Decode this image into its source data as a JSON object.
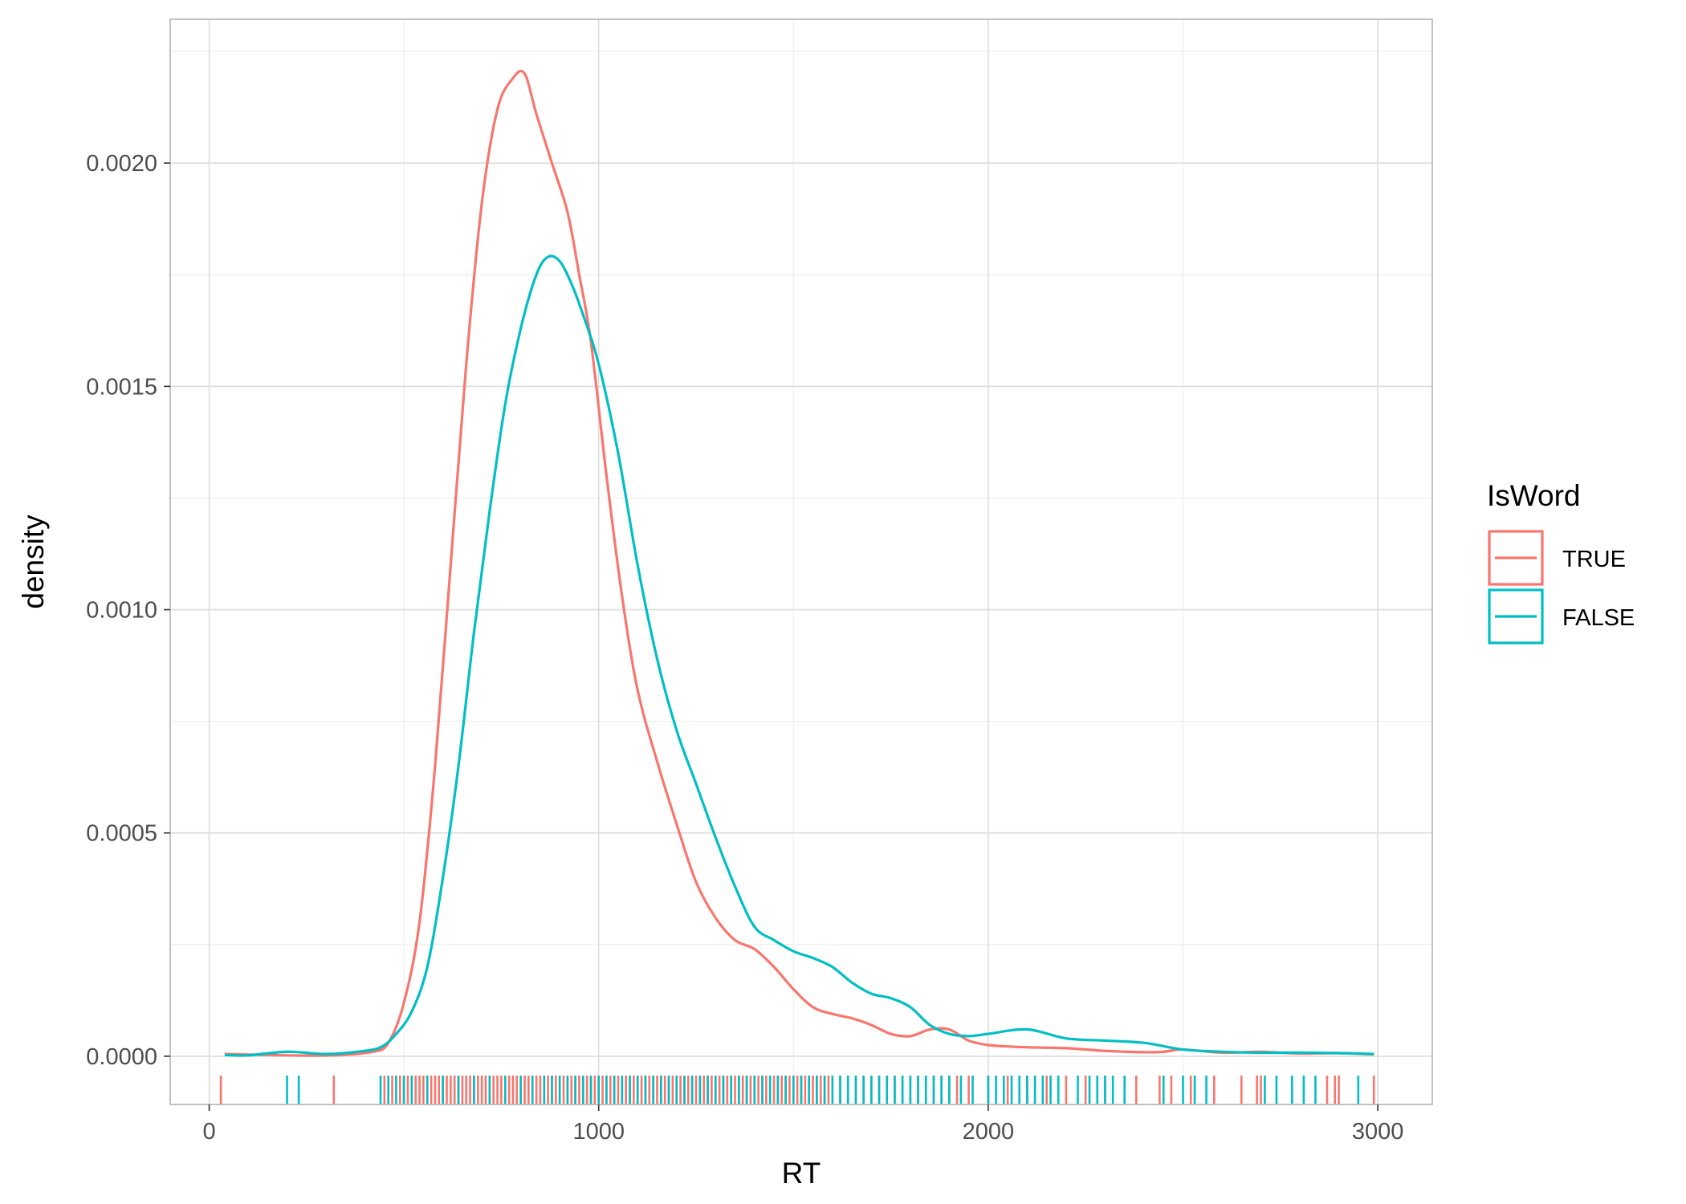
{
  "chart_data": {
    "type": "line",
    "subtype": "density",
    "xlabel": "RT",
    "ylabel": "density",
    "xlim": [
      -100,
      3140
    ],
    "ylim": [
      -0.000108,
      0.002322
    ],
    "x_ticks": [
      0,
      1000,
      2000,
      3000
    ],
    "x_tick_labels": [
      "0",
      "1000",
      "2000",
      "3000"
    ],
    "y_ticks": [
      0,
      0.0005,
      0.001,
      0.0015,
      0.002
    ],
    "y_tick_labels": [
      "0.0000",
      "0.0005",
      "0.0010",
      "0.0015",
      "0.0020"
    ],
    "grid": true,
    "legend": {
      "title": "IsWord",
      "position": "right",
      "entries": [
        {
          "label": "TRUE",
          "color": "#F8766D"
        },
        {
          "label": "FALSE",
          "color": "#00BFC4"
        }
      ]
    },
    "series": [
      {
        "name": "TRUE",
        "color": "#F8766D",
        "x": [
          40,
          200,
          320,
          420,
          460,
          500,
          540,
          580,
          620,
          660,
          700,
          740,
          780,
          810,
          840,
          880,
          920,
          950,
          980,
          1020,
          1060,
          1100,
          1150,
          1200,
          1250,
          1300,
          1350,
          1400,
          1450,
          1500,
          1550,
          1600,
          1650,
          1700,
          1750,
          1800,
          1850,
          1900,
          1950,
          2000,
          2050,
          2100,
          2200,
          2300,
          2400,
          2450,
          2500,
          2600,
          2700,
          2800,
          2900,
          2990
        ],
        "y": [
          5e-06,
          2e-06,
          2e-06,
          1e-05,
          3e-05,
          0.00012,
          0.0003,
          0.00065,
          0.0011,
          0.00155,
          0.00191,
          0.00212,
          0.00219,
          0.0022,
          0.00211,
          0.002,
          0.00189,
          0.00175,
          0.0016,
          0.0013,
          0.00103,
          0.00082,
          0.00066,
          0.00052,
          0.00039,
          0.00031,
          0.00026,
          0.00024,
          0.0002,
          0.00015,
          0.00011,
          9.47e-05,
          8.5e-05,
          7e-05,
          5e-05,
          4.5e-05,
          6e-05,
          6e-05,
          3.5e-05,
          2.5e-05,
          2.2e-05,
          2e-05,
          1.8e-05,
          1.2e-05,
          9e-06,
          1e-05,
          1.5e-05,
          8e-06,
          1e-05,
          6e-06,
          7e-06,
          4e-06
        ]
      },
      {
        "name": "FALSE",
        "color": "#00BFC4",
        "x": [
          40,
          100,
          200,
          300,
          380,
          440,
          480,
          520,
          560,
          600,
          640,
          680,
          720,
          760,
          800,
          840,
          870,
          900,
          930,
          960,
          1000,
          1050,
          1100,
          1150,
          1200,
          1250,
          1300,
          1350,
          1400,
          1450,
          1500,
          1550,
          1600,
          1650,
          1700,
          1750,
          1800,
          1850,
          1900,
          1950,
          2000,
          2100,
          2200,
          2300,
          2400,
          2500,
          2600,
          2700,
          2800,
          2900,
          2990
        ],
        "y": [
          3e-06,
          2e-06,
          1e-05,
          5e-06,
          1e-05,
          2e-05,
          5e-05,
          0.0001,
          0.0002,
          0.0004,
          0.00065,
          0.00095,
          0.00122,
          0.00146,
          0.00163,
          0.00175,
          0.00179,
          0.00178,
          0.00173,
          0.00166,
          0.00155,
          0.00135,
          0.0011,
          0.00089,
          0.00073,
          0.00061,
          0.00049,
          0.00038,
          0.00029,
          0.00026,
          0.000235,
          0.00022,
          0.0002,
          0.000165,
          0.00014,
          0.00013,
          0.00011,
          7e-05,
          5e-05,
          4.5e-05,
          5e-05,
          6e-05,
          4e-05,
          3.5e-05,
          3e-05,
          1.5e-05,
          1e-05,
          8e-06,
          8e-06,
          7e-06,
          5e-06
        ]
      }
    ],
    "rug": {
      "TRUE": [
        30,
        320,
        450,
        470,
        490,
        500,
        510,
        520,
        530,
        540,
        550,
        560,
        570,
        580,
        590,
        600,
        610,
        620,
        630,
        640,
        650,
        660,
        670,
        680,
        690,
        700,
        710,
        720,
        730,
        740,
        750,
        760,
        770,
        780,
        790,
        800,
        810,
        820,
        830,
        840,
        850,
        860,
        870,
        880,
        890,
        900,
        910,
        920,
        930,
        940,
        950,
        960,
        970,
        980,
        990,
        1000,
        1010,
        1020,
        1030,
        1040,
        1050,
        1060,
        1070,
        1080,
        1090,
        1100,
        1110,
        1120,
        1130,
        1140,
        1150,
        1160,
        1170,
        1180,
        1190,
        1200,
        1210,
        1220,
        1230,
        1240,
        1250,
        1260,
        1270,
        1280,
        1290,
        1300,
        1310,
        1320,
        1330,
        1340,
        1350,
        1360,
        1370,
        1380,
        1390,
        1400,
        1410,
        1420,
        1430,
        1440,
        1450,
        1460,
        1470,
        1480,
        1490,
        1500,
        1510,
        1520,
        1530,
        1540,
        1550,
        1560,
        1570,
        1580,
        1590,
        1600,
        1620,
        1640,
        1660,
        1680,
        1700,
        1720,
        1740,
        1760,
        1780,
        1800,
        1820,
        1840,
        1860,
        1880,
        1900,
        1920,
        1950,
        2000,
        2050,
        2100,
        2150,
        2200,
        2250,
        2300,
        2380,
        2440,
        2470,
        2520,
        2580,
        2650,
        2690,
        2700,
        2870,
        2890,
        2900,
        2990
      ],
      "FALSE": [
        200,
        230,
        440,
        460,
        480,
        500,
        520,
        560,
        600,
        640,
        680,
        720,
        760,
        800,
        830,
        860,
        880,
        900,
        920,
        940,
        960,
        980,
        1000,
        1020,
        1040,
        1060,
        1080,
        1100,
        1120,
        1140,
        1160,
        1180,
        1200,
        1220,
        1240,
        1260,
        1280,
        1300,
        1320,
        1340,
        1360,
        1380,
        1400,
        1420,
        1440,
        1460,
        1480,
        1500,
        1520,
        1540,
        1560,
        1580,
        1600,
        1620,
        1640,
        1660,
        1680,
        1700,
        1720,
        1740,
        1760,
        1780,
        1800,
        1820,
        1840,
        1860,
        1880,
        1900,
        1930,
        1960,
        2000,
        2020,
        2040,
        2060,
        2080,
        2100,
        2120,
        2140,
        2160,
        2180,
        2230,
        2260,
        2280,
        2300,
        2320,
        2350,
        2450,
        2500,
        2530,
        2560,
        2710,
        2740,
        2780,
        2810,
        2840,
        2950
      ]
    }
  }
}
